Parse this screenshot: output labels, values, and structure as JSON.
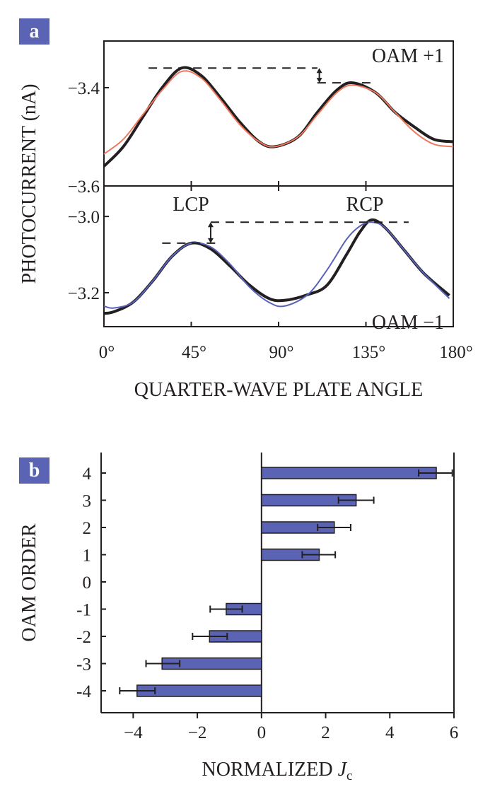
{
  "chart_data": [
    {
      "panel": "a",
      "type": "line",
      "xlabel": "QUARTER-WAVE PLATE ANGLE",
      "ylabel": "PHOTOCURRENT (nA)",
      "xlim": [
        0,
        180
      ],
      "x_ticks": [
        0,
        45,
        90,
        135,
        180
      ],
      "x_tick_labels": [
        "0°",
        "45°",
        "90°",
        "135°",
        "180°"
      ],
      "colors": {
        "data": "#231f20",
        "fit_plus": "#f07860",
        "fit_minus": "#5a62b8",
        "tag": "#5b64b4"
      },
      "subplots": [
        {
          "name": "upper",
          "label": "OAM +1",
          "ylim": [
            -3.6,
            -3.305
          ],
          "y_ticks": [
            -3.4,
            -3.6
          ],
          "y_tick_labels": [
            "−3.4",
            "−3.6"
          ],
          "x": [
            0,
            10,
            20,
            30,
            40,
            50,
            60,
            70,
            80,
            88,
            100,
            110,
            120,
            128,
            140,
            150,
            160,
            170,
            180
          ],
          "series": [
            {
              "name": "measured",
              "values": [
                -3.56,
                -3.52,
                -3.46,
                -3.4,
                -3.36,
                -3.375,
                -3.42,
                -3.47,
                -3.51,
                -3.52,
                -3.5,
                -3.45,
                -3.405,
                -3.39,
                -3.41,
                -3.45,
                -3.48,
                -3.505,
                -3.51
              ]
            },
            {
              "name": "fit",
              "values": [
                -3.535,
                -3.505,
                -3.455,
                -3.405,
                -3.367,
                -3.38,
                -3.425,
                -3.475,
                -3.51,
                -3.52,
                -3.5,
                -3.455,
                -3.41,
                -3.395,
                -3.41,
                -3.45,
                -3.49,
                -3.515,
                -3.52
              ]
            }
          ],
          "annotations": [
            {
              "type": "dashed",
              "x": [
                23,
                110
              ],
              "y": -3.36
            },
            {
              "type": "dashed",
              "x": [
                110,
                140
              ],
              "y": -3.39
            },
            {
              "type": "arrow",
              "x": 111,
              "y": [
                -3.36,
                -3.39
              ]
            }
          ]
        },
        {
          "name": "lower",
          "label": "OAM −1",
          "ylim": [
            -3.289,
            -2.92
          ],
          "y_ticks": [
            -3.0,
            -3.2
          ],
          "y_tick_labels": [
            "−3.0",
            "−3.2"
          ],
          "x": [
            0,
            5,
            15,
            25,
            35,
            45,
            55,
            65,
            75,
            85,
            93,
            105,
            115,
            125,
            132,
            138,
            145,
            155,
            165,
            178
          ],
          "series": [
            {
              "name": "measured",
              "values": [
                -3.254,
                -3.25,
                -3.225,
                -3.17,
                -3.105,
                -3.07,
                -3.085,
                -3.13,
                -3.18,
                -3.215,
                -3.22,
                -3.205,
                -3.18,
                -3.1,
                -3.04,
                -3.009,
                -3.03,
                -3.09,
                -3.15,
                -3.207
              ]
            },
            {
              "name": "fit",
              "values": [
                -3.235,
                -3.24,
                -3.225,
                -3.17,
                -3.105,
                -3.07,
                -3.08,
                -3.125,
                -3.185,
                -3.225,
                -3.235,
                -3.205,
                -3.14,
                -3.06,
                -3.025,
                -3.015,
                -3.03,
                -3.09,
                -3.15,
                -3.215
              ]
            }
          ],
          "annotations": [
            {
              "type": "dashed",
              "x": [
                30,
                60
              ],
              "y": -3.07
            },
            {
              "type": "dashed",
              "x": [
                55,
                157
              ],
              "y": -3.015
            },
            {
              "type": "arrow",
              "x": 55,
              "y": [
                -3.015,
                -3.07
              ]
            }
          ],
          "text_labels": [
            "LCP",
            "RCP"
          ]
        }
      ]
    },
    {
      "panel": "b",
      "type": "bar",
      "orientation": "horizontal",
      "xlabel_main": "NORMALIZED ",
      "xlabel_italic": "J",
      "xlabel_sub": "c",
      "ylabel": "OAM ORDER",
      "xlim": [
        -5,
        6
      ],
      "x_ticks": [
        -4,
        -2,
        0,
        2,
        4,
        6
      ],
      "x_tick_labels": [
        "−4",
        "−2",
        "0",
        "2",
        "4",
        "6"
      ],
      "categories": [
        "4",
        "3",
        "2",
        "1",
        "0",
        "-1",
        "-2",
        "-3",
        "-4"
      ],
      "values": [
        5.45,
        2.95,
        2.27,
        1.8,
        null,
        -1.1,
        -1.62,
        -3.1,
        -3.88
      ],
      "error_low": [
        4.9,
        2.4,
        1.75,
        1.27,
        null,
        -1.6,
        -2.15,
        -3.6,
        -4.42
      ],
      "error_high": [
        5.95,
        3.5,
        2.78,
        2.3,
        null,
        -0.6,
        -1.07,
        -2.55,
        -3.32
      ],
      "bar_color": "#5b64b4"
    }
  ],
  "panel_tags": [
    "a",
    "b"
  ]
}
